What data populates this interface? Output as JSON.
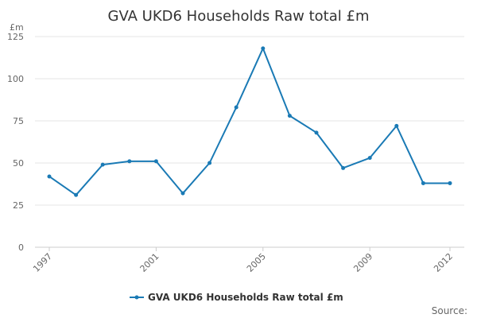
{
  "chart_data": {
    "type": "line",
    "title": "GVA UKD6 Households Raw total £m",
    "y_unit_label": "£m",
    "ylim": [
      0,
      125
    ],
    "y_ticks": [
      0,
      25,
      50,
      75,
      100,
      125
    ],
    "x": [
      1997,
      1998,
      1999,
      2000,
      2001,
      2002,
      2003,
      2004,
      2005,
      2006,
      2007,
      2008,
      2009,
      2010,
      2011,
      2012
    ],
    "x_tick_labels": [
      "1997",
      "2001",
      "2005",
      "2009",
      "2012"
    ],
    "series": [
      {
        "name": "GVA UKD6 Households Raw total £m",
        "color": "#1a7ab5",
        "values": [
          42,
          31,
          49,
          51,
          51,
          32,
          50,
          83,
          118,
          78,
          68,
          47,
          53,
          72,
          38,
          38
        ]
      }
    ],
    "grid": true,
    "legend_position": "bottom",
    "source_label": "Source:"
  }
}
